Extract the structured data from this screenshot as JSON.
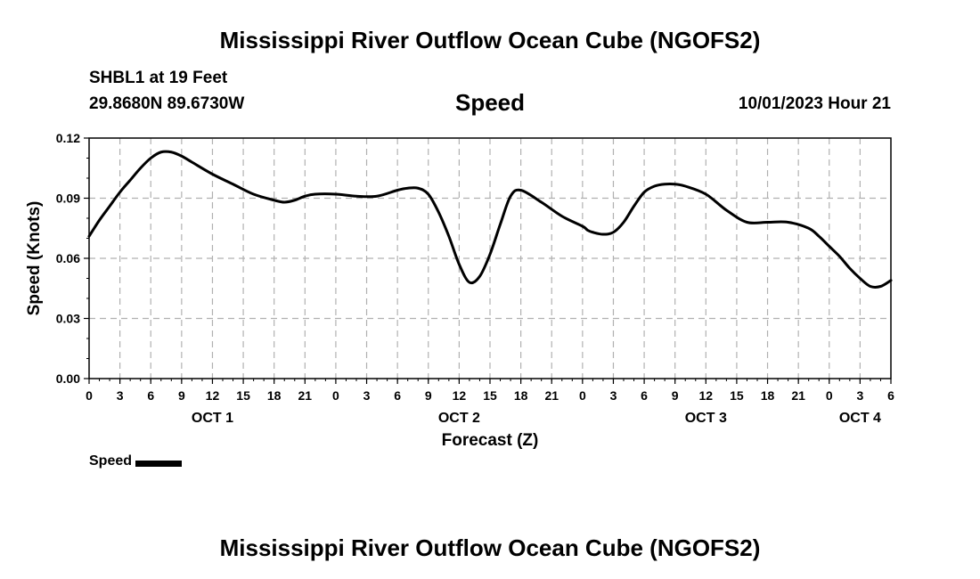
{
  "header": {
    "title": "Mississippi River Outflow Ocean Cube (NGOFS2)",
    "station": "SHBL1 at 19 Feet",
    "coords": "29.8680N  89.6730W",
    "parameter": "Speed",
    "datetime": "10/01/2023 Hour 21"
  },
  "footer": {
    "title": "Mississippi River Outflow Ocean Cube (NGOFS2)"
  },
  "legend": {
    "label": "Speed"
  },
  "colors": {
    "line": "#000000",
    "grid": "#b0b0b0"
  },
  "chart_data": {
    "type": "line",
    "title": "Speed",
    "xlabel": "Forecast (Z)",
    "ylabel": "Speed (Knots)",
    "xlim": [
      0,
      78
    ],
    "ylim": [
      0,
      0.12
    ],
    "yticks": [
      "0.00",
      "0.03",
      "0.06",
      "0.09",
      "0.12"
    ],
    "xticks": [
      "0",
      "3",
      "6",
      "9",
      "12",
      "15",
      "18",
      "21",
      "0",
      "3",
      "6",
      "9",
      "12",
      "15",
      "18",
      "21",
      "0",
      "3",
      "6",
      "9",
      "12",
      "15",
      "18",
      "21",
      "0",
      "3",
      "6"
    ],
    "day_labels": [
      {
        "label": "OCT 1",
        "hour": 12
      },
      {
        "label": "OCT 2",
        "hour": 36
      },
      {
        "label": "OCT 3",
        "hour": 60
      },
      {
        "label": "OCT 4",
        "hour": 75
      }
    ],
    "grid": true,
    "series": [
      {
        "name": "Speed",
        "x": [
          0,
          1,
          2,
          3,
          4,
          5,
          6,
          7,
          8,
          9,
          10,
          12,
          14,
          16,
          18,
          19,
          20,
          21,
          22,
          24,
          26,
          28,
          30,
          31,
          32,
          33,
          34,
          35,
          36,
          37,
          38,
          39,
          40,
          41,
          42,
          44,
          46,
          48,
          48.5,
          49,
          50,
          51,
          52,
          53,
          54,
          55,
          56,
          57,
          58,
          60,
          62,
          64,
          66,
          68,
          70,
          71,
          72,
          73,
          74,
          75,
          76,
          77,
          78
        ],
        "values": [
          0.071,
          0.079,
          0.086,
          0.093,
          0.099,
          0.105,
          0.11,
          0.113,
          0.113,
          0.111,
          0.108,
          0.102,
          0.097,
          0.092,
          0.089,
          0.088,
          0.089,
          0.091,
          0.092,
          0.092,
          0.091,
          0.091,
          0.094,
          0.095,
          0.095,
          0.092,
          0.083,
          0.071,
          0.057,
          0.048,
          0.051,
          0.062,
          0.077,
          0.091,
          0.094,
          0.088,
          0.081,
          0.076,
          0.074,
          0.073,
          0.072,
          0.073,
          0.078,
          0.086,
          0.093,
          0.096,
          0.097,
          0.097,
          0.096,
          0.092,
          0.084,
          0.078,
          0.078,
          0.078,
          0.075,
          0.071,
          0.066,
          0.061,
          0.055,
          0.05,
          0.046,
          0.046,
          0.049
        ]
      }
    ]
  }
}
